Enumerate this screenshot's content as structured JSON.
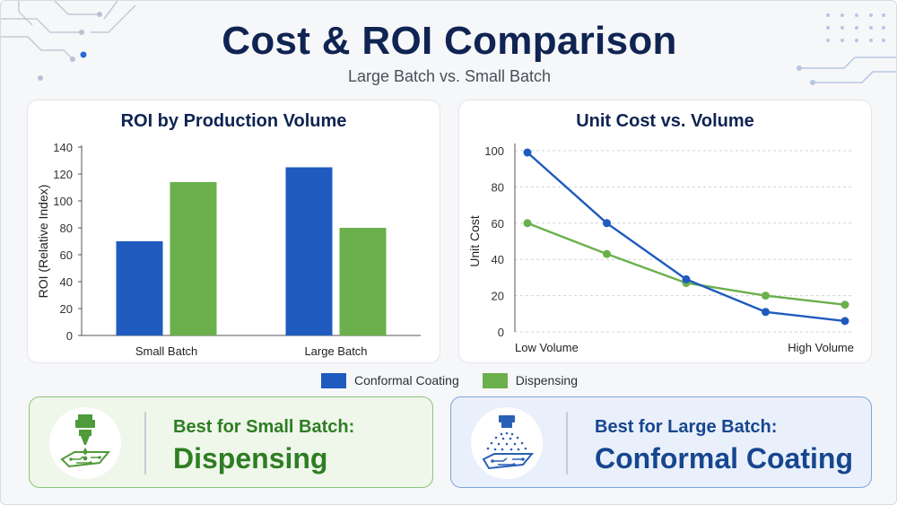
{
  "header": {
    "title": "Cost & ROI Comparison",
    "subtitle": "Large Batch vs. Small Batch"
  },
  "colors": {
    "conformal": "#1f5bbf",
    "dispensing": "#6ab04c",
    "title": "#0f2452",
    "green_card_text": "#2f7d24",
    "blue_card_text": "#17468f"
  },
  "legend": {
    "series": [
      {
        "name": "Conformal Coating",
        "color": "#1f5bbf"
      },
      {
        "name": "Dispensing",
        "color": "#6ab04c"
      }
    ]
  },
  "chart_data": [
    {
      "type": "bar",
      "title": "ROI by Production Volume",
      "xlabel": "",
      "ylabel": "ROI (Relative Index)",
      "categories": [
        "Small Batch",
        "Large Batch"
      ],
      "series": [
        {
          "name": "Conformal Coating",
          "values": [
            70,
            125
          ]
        },
        {
          "name": "Dispensing",
          "values": [
            114,
            80
          ]
        }
      ],
      "ylim": [
        0,
        140
      ],
      "yticks": [
        0,
        20,
        40,
        60,
        80,
        100,
        120,
        140
      ],
      "grid": false,
      "legend": "bottom"
    },
    {
      "type": "line",
      "title": "Unit Cost vs. Volume",
      "xlabel": "",
      "ylabel": "Unit Cost",
      "x_tick_labels": [
        "Low Volume",
        "High Volume"
      ],
      "x": [
        1,
        2,
        3,
        4,
        5
      ],
      "series": [
        {
          "name": "Conformal Coating",
          "values": [
            99,
            60,
            29,
            11,
            6
          ]
        },
        {
          "name": "Dispensing",
          "values": [
            60,
            43,
            27,
            20,
            15
          ]
        }
      ],
      "ylim": [
        0,
        100
      ],
      "yticks": [
        0,
        20,
        40,
        60,
        80,
        100
      ],
      "grid": true,
      "legend": "bottom"
    }
  ],
  "cards": [
    {
      "kicker": "Best for Small Batch:",
      "main": "Dispensing",
      "icon": "dispensing-nozzle-icon"
    },
    {
      "kicker": "Best for Large Batch:",
      "main": "Conformal Coating",
      "icon": "spray-coating-icon"
    }
  ]
}
